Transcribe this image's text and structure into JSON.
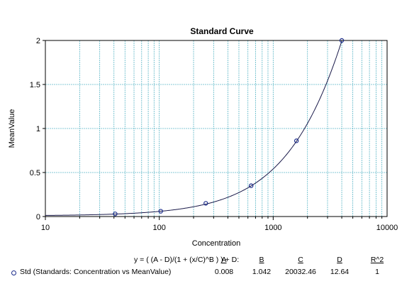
{
  "chart_data": {
    "type": "scatter",
    "title": "Standard Curve",
    "xlabel": "Concentration",
    "ylabel": "MeanValue",
    "xscale": "log",
    "xlim": [
      10,
      10000
    ],
    "ylim": [
      0,
      2
    ],
    "x_ticks": [
      "10",
      "100",
      "1000",
      "10000"
    ],
    "y_ticks": [
      "0",
      "0.5",
      "1",
      "1.5",
      "2"
    ],
    "grid": true,
    "series": [
      {
        "marker_color": "#1a2a8a",
        "x": [
          41,
          103,
          256,
          640,
          1600,
          4000
        ],
        "y": [
          0.03,
          0.06,
          0.15,
          0.35,
          0.86,
          2.0
        ]
      }
    ],
    "fit": {
      "equation": "y = ( (A - D)/(1 + (x/C)^B ) ) + D:",
      "params": {
        "A": 0.008,
        "B": 1.042,
        "C": 20032.46,
        "D": 12.64
      },
      "curve_color": "#1a1a4a"
    }
  },
  "fit_table": {
    "equation": "y = ( (A - D)/(1 + (x/C)^B ) ) + D:",
    "headers": [
      "A",
      "B",
      "C",
      "D",
      "R^2"
    ],
    "row_label": "Std (Standards: Concentration vs MeanValue)",
    "values": [
      "0.008",
      "1.042",
      "20032.46",
      "12.64",
      "1"
    ]
  },
  "colors": {
    "grid": "#5fb8c8",
    "axis": "#000000",
    "marker": "#1a2a8a"
  }
}
